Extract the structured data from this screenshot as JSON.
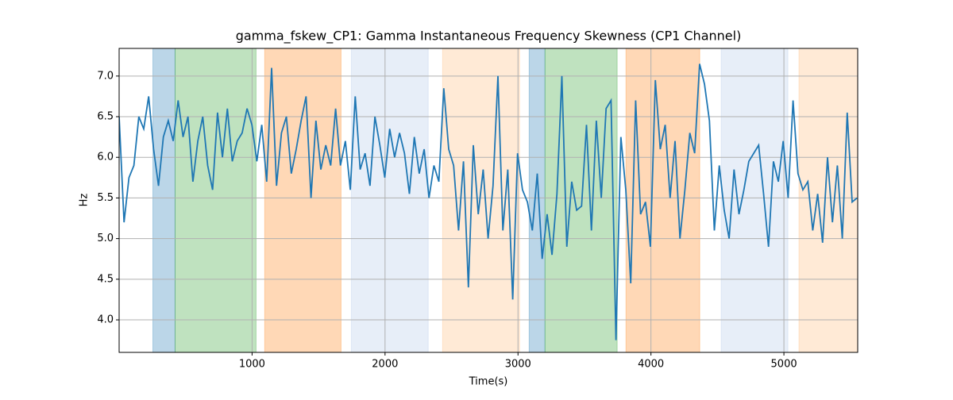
{
  "chart_data": {
    "type": "line",
    "title": "gamma_fskew_CP1: Gamma Instantaneous Frequency Skewness (CP1 Channel)",
    "xlabel": "Time(s)",
    "ylabel": "Hz",
    "x": [
      0,
      37,
      74,
      111,
      148,
      185,
      222,
      259,
      296,
      333,
      370,
      407,
      444,
      481,
      518,
      555,
      592,
      629,
      666,
      703,
      740,
      777,
      814,
      851,
      888,
      925,
      962,
      999,
      1036,
      1073,
      1110,
      1147,
      1184,
      1221,
      1258,
      1295,
      1332,
      1369,
      1406,
      1443,
      1480,
      1517,
      1554,
      1591,
      1628,
      1665,
      1702,
      1739,
      1776,
      1813,
      1850,
      1887,
      1924,
      1961,
      1998,
      2035,
      2072,
      2109,
      2146,
      2183,
      2220,
      2257,
      2294,
      2331,
      2368,
      2405,
      2442,
      2479,
      2516,
      2553,
      2590,
      2627,
      2664,
      2701,
      2738,
      2775,
      2812,
      2849,
      2886,
      2923,
      2960,
      2997,
      3034,
      3071,
      3108,
      3145,
      3182,
      3219,
      3256,
      3293,
      3330,
      3367,
      3404,
      3441,
      3478,
      3515,
      3552,
      3589,
      3626,
      3663,
      3700,
      3737,
      3774,
      3811,
      3848,
      3885,
      3922,
      3959,
      3996,
      4033,
      4070,
      4107,
      4144,
      4181,
      4218,
      4255,
      4292,
      4329,
      4366,
      4403,
      4440,
      4477,
      4514,
      4551,
      4588,
      4625,
      4662,
      4699,
      4736,
      4773,
      4810,
      4847,
      4884,
      4921,
      4958,
      4995,
      5032,
      5069,
      5106,
      5143,
      5180,
      5217,
      5254,
      5291,
      5328,
      5365,
      5402,
      5439,
      5476,
      5513,
      5550
    ],
    "series": [
      {
        "color": "#1f77b4",
        "values": [
          6.5,
          5.2,
          5.75,
          5.9,
          6.5,
          6.35,
          6.75,
          6.1,
          5.65,
          6.25,
          6.45,
          6.2,
          6.7,
          6.25,
          6.5,
          5.7,
          6.2,
          6.5,
          5.9,
          5.6,
          6.55,
          6.0,
          6.6,
          5.95,
          6.2,
          6.3,
          6.6,
          6.4,
          5.95,
          6.4,
          5.7,
          7.1,
          5.65,
          6.3,
          6.5,
          5.8,
          6.1,
          6.45,
          6.75,
          5.5,
          6.45,
          5.85,
          6.15,
          5.9,
          6.6,
          5.9,
          6.2,
          5.6,
          6.75,
          5.85,
          6.05,
          5.65,
          6.5,
          6.15,
          5.75,
          6.35,
          6.0,
          6.3,
          6.05,
          5.55,
          6.25,
          5.8,
          6.1,
          5.5,
          5.9,
          5.7,
          6.85,
          6.1,
          5.9,
          5.1,
          5.95,
          4.4,
          6.15,
          5.3,
          5.85,
          5.0,
          5.65,
          7.0,
          5.1,
          5.85,
          4.25,
          6.05,
          5.6,
          5.45,
          5.1,
          5.8,
          4.75,
          5.3,
          4.8,
          5.55,
          7.0,
          4.9,
          5.7,
          5.35,
          5.4,
          6.4,
          5.1,
          6.45,
          5.5,
          6.6,
          6.7,
          3.75,
          6.25,
          5.6,
          4.45,
          6.7,
          5.3,
          5.45,
          4.9,
          6.95,
          6.1,
          6.4,
          5.5,
          6.2,
          5.0,
          5.6,
          6.3,
          6.05,
          7.15,
          6.9,
          6.45,
          5.1,
          5.9,
          5.35,
          5.0,
          5.85,
          5.3,
          5.6,
          5.95,
          6.05,
          6.15,
          5.55,
          4.9,
          5.95,
          5.7,
          6.2,
          5.5,
          6.7,
          5.8,
          5.6,
          5.7,
          5.1,
          5.55,
          4.95,
          6.0,
          5.2,
          5.9,
          5.0,
          6.55,
          5.45,
          5.5
        ]
      }
    ],
    "spans": [
      {
        "x0": 254,
        "x1": 421,
        "color": "#1f77b4",
        "opacity": 0.3
      },
      {
        "x0": 421,
        "x1": 1030,
        "color": "#2ca02c",
        "opacity": 0.3
      },
      {
        "x0": 1095,
        "x1": 1669,
        "color": "#ff7f0e",
        "opacity": 0.3
      },
      {
        "x0": 1746,
        "x1": 2325,
        "color": "#aec7e8",
        "opacity": 0.3
      },
      {
        "x0": 2433,
        "x1": 3012,
        "color": "#ffbb78",
        "opacity": 0.3
      },
      {
        "x0": 3084,
        "x1": 3203,
        "color": "#1f77b4",
        "opacity": 0.3
      },
      {
        "x0": 3203,
        "x1": 3746,
        "color": "#2ca02c",
        "opacity": 0.3
      },
      {
        "x0": 3812,
        "x1": 4367,
        "color": "#ff7f0e",
        "opacity": 0.3
      },
      {
        "x0": 4528,
        "x1": 5030,
        "color": "#aec7e8",
        "opacity": 0.3
      },
      {
        "x0": 5113,
        "x1": 5555,
        "color": "#ffbb78",
        "opacity": 0.3
      }
    ],
    "xlim": [
      0,
      5555
    ],
    "ylim": [
      3.6,
      7.34
    ],
    "xticks": [
      1000,
      2000,
      3000,
      4000,
      5000
    ],
    "yticks": [
      {
        "value": 4,
        "label": "4.0"
      },
      {
        "value": 4.5,
        "label": "4.5"
      },
      {
        "value": 5,
        "label": "5.0"
      },
      {
        "value": 5.5,
        "label": "5.5"
      },
      {
        "value": 6,
        "label": "6.0"
      },
      {
        "value": 6.5,
        "label": "6.5"
      },
      {
        "value": 7,
        "label": "7.0"
      }
    ],
    "grid": true
  }
}
